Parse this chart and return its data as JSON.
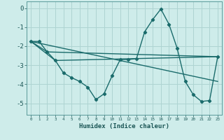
{
  "xlabel": "Humidex (Indice chaleur)",
  "background_color": "#ceecea",
  "grid_color": "#aed4d2",
  "line_color": "#1a6b6b",
  "marker": "D",
  "markersize": 2.2,
  "linewidth": 1.0,
  "xlim": [
    -0.5,
    23.5
  ],
  "ylim": [
    -5.6,
    0.35
  ],
  "yticks": [
    0,
    -1,
    -2,
    -3,
    -4,
    -5
  ],
  "xticks": [
    0,
    1,
    2,
    3,
    4,
    5,
    6,
    7,
    8,
    9,
    10,
    11,
    12,
    13,
    14,
    15,
    16,
    17,
    18,
    19,
    20,
    21,
    22,
    23
  ],
  "series": [
    [
      0,
      -1.75
    ],
    [
      1,
      -1.75
    ],
    [
      2,
      -2.3
    ],
    [
      3,
      -2.75
    ],
    [
      4,
      -3.4
    ],
    [
      5,
      -3.65
    ],
    [
      6,
      -3.85
    ],
    [
      7,
      -4.15
    ],
    [
      8,
      -4.8
    ],
    [
      9,
      -4.5
    ],
    [
      10,
      -3.55
    ],
    [
      11,
      -2.7
    ],
    [
      12,
      -2.7
    ],
    [
      13,
      -2.65
    ],
    [
      14,
      -1.25
    ],
    [
      15,
      -0.6
    ],
    [
      16,
      -0.05
    ],
    [
      17,
      -0.85
    ],
    [
      18,
      -2.1
    ],
    [
      19,
      -3.85
    ],
    [
      20,
      -4.55
    ],
    [
      21,
      -4.9
    ],
    [
      22,
      -4.85
    ],
    [
      23,
      -2.55
    ]
  ],
  "line2": [
    [
      0,
      -1.75
    ],
    [
      2,
      -2.3
    ],
    [
      23,
      -2.55
    ]
  ],
  "line3": [
    [
      0,
      -1.75
    ],
    [
      3,
      -2.75
    ],
    [
      23,
      -2.55
    ]
  ],
  "line4": [
    [
      0,
      -1.75
    ],
    [
      23,
      -3.85
    ]
  ]
}
